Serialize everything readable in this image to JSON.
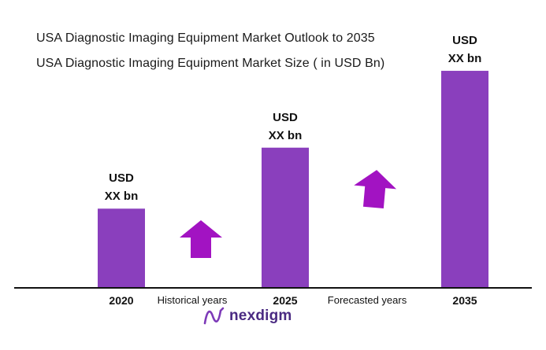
{
  "chart_data": {
    "type": "bar",
    "title": "USA Diagnostic Imaging Equipment Market Outlook to 2035",
    "subtitle": "USA Diagnostic Imaging Equipment Market Size ( in USD Bn)",
    "categories": [
      "2020",
      "2025",
      "2035"
    ],
    "values": [
      1.0,
      1.77,
      2.74
    ],
    "data_labels": [
      [
        "USD",
        "XX bn"
      ],
      [
        "USD",
        "XX bn"
      ],
      [
        "USD",
        "XX bn"
      ]
    ],
    "period_labels": [
      "Historical years",
      "Forecasted years"
    ],
    "ylim": [
      0,
      2.8
    ],
    "grid": false,
    "bar_color": "#8a3fbd",
    "arrow_color": "#a213c2"
  },
  "logo": {
    "text": "nexdigm",
    "icon": "nexdigm-wave-icon",
    "color": "#4a2a82"
  }
}
